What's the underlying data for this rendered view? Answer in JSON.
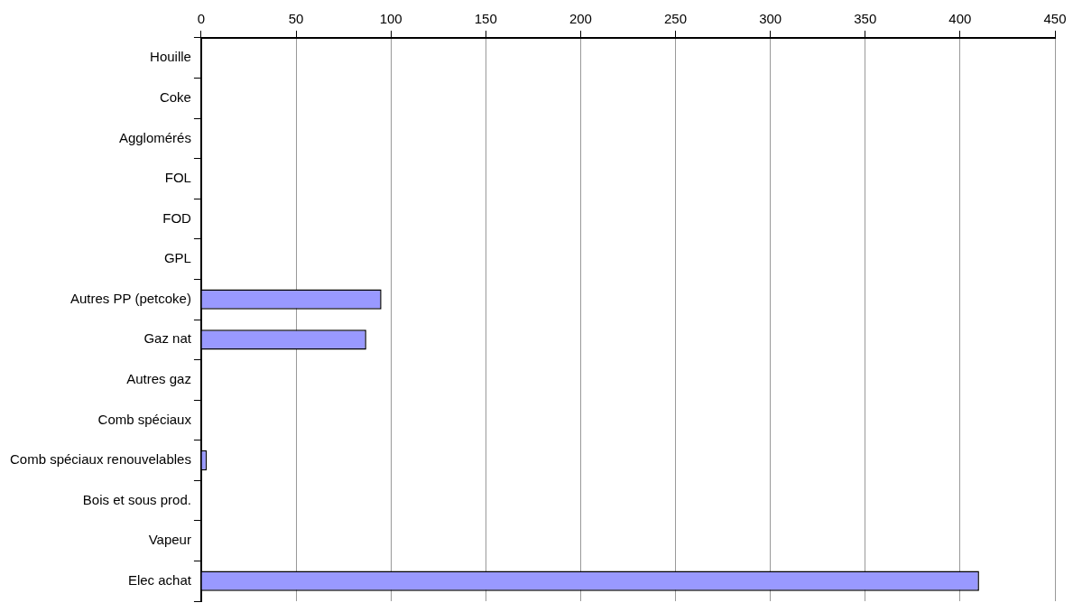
{
  "chart_data": {
    "type": "bar",
    "orientation": "horizontal",
    "categories": [
      "Houille",
      "Coke",
      "Agglomérés",
      "FOL",
      "FOD",
      "GPL",
      "Autres PP (petcoke)",
      "Gaz nat",
      "Autres gaz",
      "Comb spéciaux",
      "Comb spéciaux renouvelables",
      "Bois et sous prod.",
      "Vapeur",
      "Elec achat"
    ],
    "values": [
      0,
      0,
      0,
      0,
      0,
      0,
      95,
      87,
      0,
      0,
      3,
      0,
      0,
      410
    ],
    "color": "#9999ff",
    "xlim": [
      0,
      450
    ],
    "xticks": [
      0,
      50,
      100,
      150,
      200,
      250,
      300,
      350,
      400,
      450
    ],
    "grid": "x",
    "legend": false
  }
}
